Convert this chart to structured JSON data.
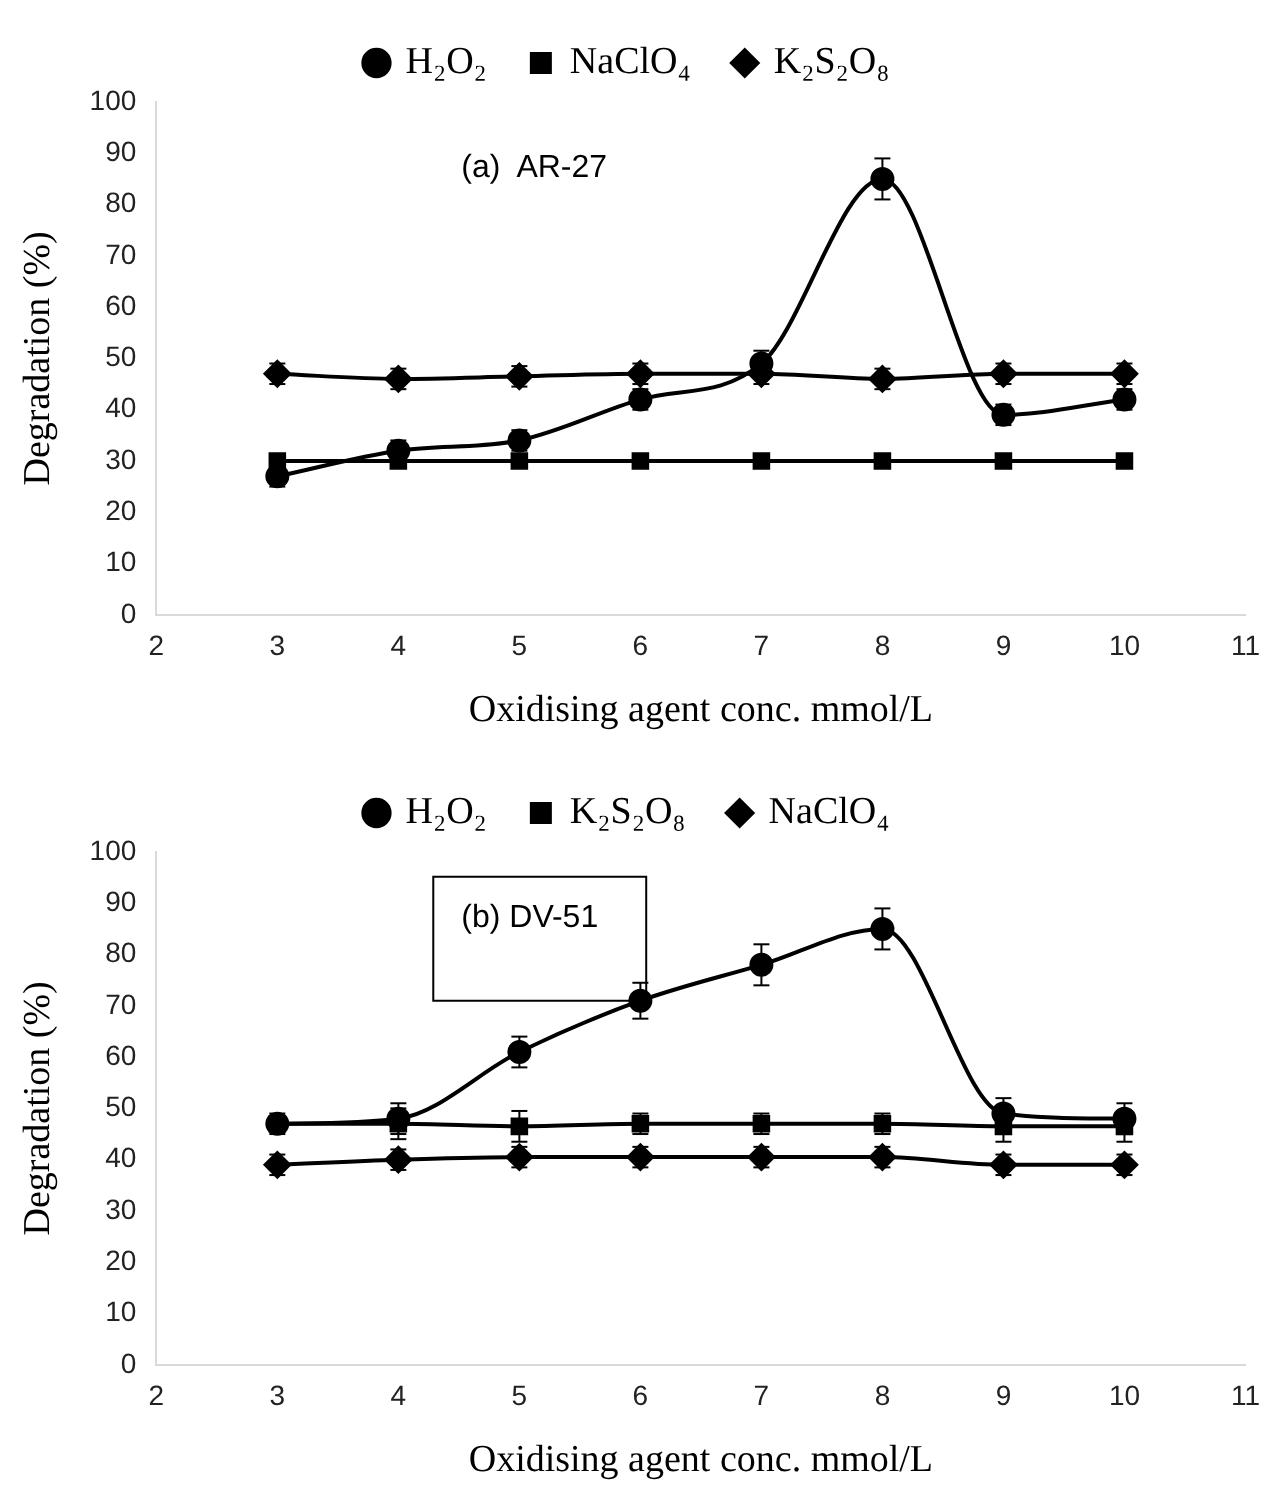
{
  "chart_data": [
    {
      "type": "line",
      "xlabel": "Oxidising agent conc. mmol/L",
      "ylabel": "Degradation (%)",
      "annotations": [
        "(a)  AR-27"
      ],
      "x": [
        3,
        4,
        5,
        6,
        7,
        8,
        9,
        10
      ],
      "xlim": [
        2,
        11
      ],
      "xticks": [
        2,
        3,
        4,
        5,
        6,
        7,
        8,
        9,
        10,
        11
      ],
      "ylim": [
        0,
        100
      ],
      "yticks": [
        0,
        10,
        20,
        30,
        40,
        50,
        60,
        70,
        80,
        90,
        100
      ],
      "grid": false,
      "legend": "top",
      "series": [
        {
          "name": "H₂O₂",
          "color": "#000000",
          "marker": "circle",
          "values": [
            27,
            32,
            34,
            42,
            49,
            85,
            39,
            42
          ],
          "errors": [
            2,
            2,
            2,
            2,
            2.5,
            4,
            2,
            2
          ]
        },
        {
          "name": "NaClO₄",
          "color": "#000000",
          "marker": "square",
          "values": [
            30,
            30,
            30,
            30,
            30,
            30,
            30,
            30
          ]
        },
        {
          "name": "K₂S₂O₈",
          "color": "#000000",
          "marker": "diamond",
          "values": [
            47,
            46,
            46.5,
            47,
            47,
            46,
            47,
            47
          ],
          "errors": [
            2,
            2,
            2,
            2,
            2,
            2,
            2,
            2
          ]
        }
      ]
    },
    {
      "type": "line",
      "xlabel": "Oxidising agent conc. mmol/L",
      "ylabel": "Degradation (%)",
      "annotations": [
        "(b) DV-51"
      ],
      "x": [
        3,
        4,
        5,
        6,
        7,
        8,
        9,
        10
      ],
      "xlim": [
        2,
        11
      ],
      "xticks": [
        2,
        3,
        4,
        5,
        6,
        7,
        8,
        9,
        10,
        11
      ],
      "ylim": [
        0,
        100
      ],
      "yticks": [
        0,
        10,
        20,
        30,
        40,
        50,
        60,
        70,
        80,
        90,
        100
      ],
      "grid": false,
      "legend": "top",
      "series": [
        {
          "name": "H₂O₂",
          "color": "#000000",
          "marker": "circle",
          "values": [
            47,
            48,
            61,
            71,
            78,
            85,
            49,
            48
          ],
          "errors": [
            2,
            3,
            3,
            3.5,
            4,
            4,
            3,
            3
          ]
        },
        {
          "name": "K₂S₂O₈",
          "color": "#000000",
          "marker": "square",
          "values": [
            47,
            47,
            46.5,
            47,
            47,
            47,
            46.5,
            46.5
          ],
          "errors": [
            null,
            3,
            3,
            2,
            2,
            2,
            3,
            3
          ]
        },
        {
          "name": "NaClO₄",
          "color": "#000000",
          "marker": "diamond",
          "values": [
            39,
            40,
            40.5,
            40.5,
            40.5,
            40.5,
            39,
            39
          ],
          "errors": [
            2,
            2,
            2,
            2,
            2,
            2,
            2,
            2
          ]
        }
      ]
    }
  ]
}
